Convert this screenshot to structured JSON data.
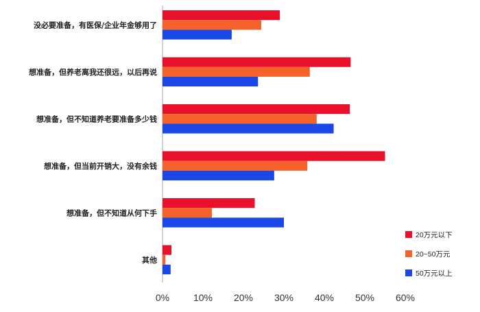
{
  "chart_data": {
    "type": "bar",
    "orientation": "horizontal",
    "categories": [
      "没必要准备，有医保/企业年金够用了",
      "想准备，但养老离我还很远，以后再说",
      "想准备，但不知道养老要准备多少钱",
      "想准备，但当前开销大，没有余钱",
      "想准备，但不知道从何下手",
      "其他"
    ],
    "series": [
      {
        "name": "20万元以下",
        "color": "#e8102a",
        "values": [
          29,
          46.5,
          46.3,
          55,
          22.8,
          2.2
        ]
      },
      {
        "name": "20~50万元",
        "color": "#f4622a",
        "values": [
          24.4,
          36.4,
          38.1,
          35.8,
          12.2,
          0.7
        ]
      },
      {
        "name": "50万元以上",
        "color": "#1a47e6",
        "values": [
          17.1,
          23.6,
          42.3,
          27.6,
          30,
          2
        ]
      }
    ],
    "x_ticks": [
      "0%",
      "10%",
      "20%",
      "30%",
      "40%",
      "50%",
      "60%"
    ],
    "xlim": [
      0,
      60
    ],
    "unit": "%",
    "grid": false,
    "legend_position": "bottom-right"
  }
}
